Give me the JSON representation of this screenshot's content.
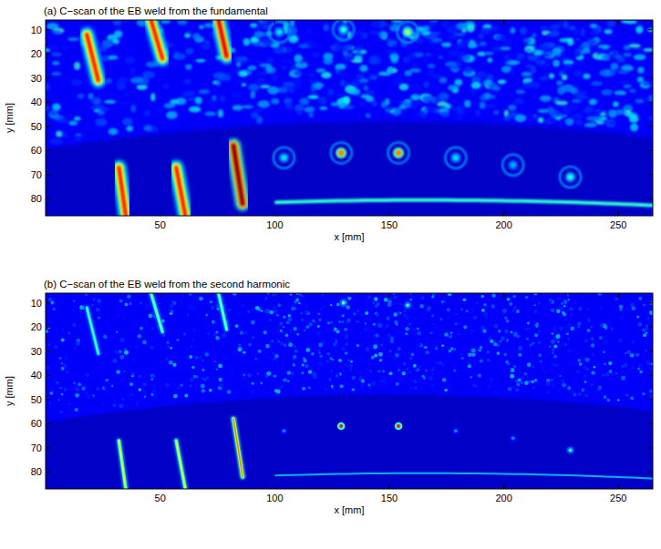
{
  "chart_data": [
    {
      "type": "heatmap",
      "title": "(a) C−scan of the EB weld from the fundamental",
      "x_label": "x [mm]",
      "y_label": "y [mm]",
      "xlim": [
        0,
        265
      ],
      "ylim": [
        6,
        87
      ],
      "xticks": [
        50,
        100,
        150,
        200,
        250
      ],
      "yticks": [
        10,
        20,
        30,
        40,
        50,
        60,
        70,
        80
      ],
      "indications": [
        {
          "x1": 18,
          "y1": 12,
          "x2": 23,
          "y2": 31,
          "amplitude": 0.85
        },
        {
          "x1": 46,
          "y1": 6,
          "x2": 51,
          "y2": 22,
          "amplitude": 0.85
        },
        {
          "x1": 75,
          "y1": 4,
          "x2": 79,
          "y2": 21,
          "amplitude": 0.9
        },
        {
          "x1": 32,
          "y1": 67,
          "x2": 35,
          "y2": 87,
          "amplitude": 0.85
        },
        {
          "x1": 57,
          "y1": 67,
          "x2": 61,
          "y2": 87,
          "amplitude": 0.85
        },
        {
          "x1": 82,
          "y1": 58,
          "x2": 86,
          "y2": 82,
          "amplitude": 1.0
        }
      ],
      "spots": [
        {
          "x": 102,
          "y": 11,
          "amplitude": 0.35
        },
        {
          "x": 130,
          "y": 10,
          "amplitude": 0.4
        },
        {
          "x": 158,
          "y": 11,
          "amplitude": 0.55
        },
        {
          "x": 104,
          "y": 63,
          "amplitude": 0.35
        },
        {
          "x": 129,
          "y": 61,
          "amplitude": 0.75
        },
        {
          "x": 154,
          "y": 61,
          "amplitude": 0.75
        },
        {
          "x": 179,
          "y": 63,
          "amplitude": 0.35
        },
        {
          "x": 204,
          "y": 66,
          "amplitude": 0.3
        },
        {
          "x": 229,
          "y": 71,
          "amplitude": 0.4
        }
      ]
    },
    {
      "type": "heatmap",
      "title": "(b) C−scan of the EB weld from the second harmonic",
      "x_label": "x [mm]",
      "y_label": "y [mm]",
      "xlim": [
        0,
        265
      ],
      "ylim": [
        6,
        87
      ],
      "xticks": [
        50,
        100,
        150,
        200,
        250
      ],
      "yticks": [
        10,
        20,
        30,
        40,
        50,
        60,
        70,
        80
      ],
      "indications": [
        {
          "x1": 18,
          "y1": 12,
          "x2": 23,
          "y2": 31,
          "amplitude": 0.45
        },
        {
          "x1": 46,
          "y1": 6,
          "x2": 51,
          "y2": 22,
          "amplitude": 0.5
        },
        {
          "x1": 75,
          "y1": 4,
          "x2": 79,
          "y2": 21,
          "amplitude": 0.5
        },
        {
          "x1": 32,
          "y1": 67,
          "x2": 35,
          "y2": 87,
          "amplitude": 0.6
        },
        {
          "x1": 57,
          "y1": 67,
          "x2": 61,
          "y2": 87,
          "amplitude": 0.6
        },
        {
          "x1": 82,
          "y1": 58,
          "x2": 86,
          "y2": 82,
          "amplitude": 0.75
        }
      ],
      "spots": [
        {
          "x": 102,
          "y": 11,
          "amplitude": 0.2
        },
        {
          "x": 130,
          "y": 10,
          "amplitude": 0.45
        },
        {
          "x": 158,
          "y": 11,
          "amplitude": 0.4
        },
        {
          "x": 104,
          "y": 63,
          "amplitude": 0.25
        },
        {
          "x": 129,
          "y": 61,
          "amplitude": 0.85
        },
        {
          "x": 154,
          "y": 61,
          "amplitude": 0.85
        },
        {
          "x": 179,
          "y": 63,
          "amplitude": 0.25
        },
        {
          "x": 204,
          "y": 66,
          "amplitude": 0.25
        },
        {
          "x": 229,
          "y": 71,
          "amplitude": 0.4
        }
      ]
    }
  ]
}
